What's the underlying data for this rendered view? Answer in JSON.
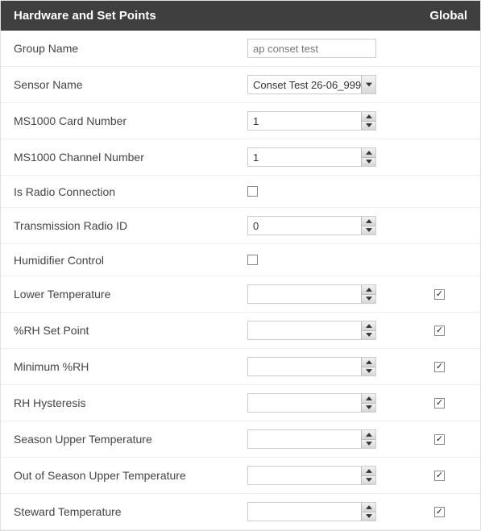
{
  "header": {
    "title": "Hardware and Set Points",
    "globalLabel": "Global"
  },
  "rows": [
    {
      "label": "Group Name",
      "type": "text",
      "value": "ap conset test",
      "global": null
    },
    {
      "label": "Sensor Name",
      "type": "select",
      "value": "Conset Test 26-06_999",
      "global": null
    },
    {
      "label": "MS1000 Card Number",
      "type": "spinner",
      "value": "1",
      "global": null
    },
    {
      "label": "MS1000 Channel Number",
      "type": "spinner",
      "value": "1",
      "global": null
    },
    {
      "label": "Is Radio Connection",
      "type": "checkbox",
      "value": false,
      "global": null
    },
    {
      "label": "Transmission Radio ID",
      "type": "spinner",
      "value": "0",
      "global": null
    },
    {
      "label": "Humidifier Control",
      "type": "checkbox",
      "value": false,
      "global": null
    },
    {
      "label": "Lower Temperature",
      "type": "spinner",
      "value": "",
      "global": true
    },
    {
      "label": "%RH Set Point",
      "type": "spinner",
      "value": "",
      "global": true
    },
    {
      "label": "Minimum %RH",
      "type": "spinner",
      "value": "",
      "global": true
    },
    {
      "label": "RH Hysteresis",
      "type": "spinner",
      "value": "",
      "global": true
    },
    {
      "label": "Season Upper Temperature",
      "type": "spinner",
      "value": "",
      "global": true
    },
    {
      "label": "Out of Season Upper Temperature",
      "type": "spinner",
      "value": "",
      "global": true
    },
    {
      "label": "Steward Temperature",
      "type": "spinner",
      "value": "",
      "global": true
    }
  ]
}
